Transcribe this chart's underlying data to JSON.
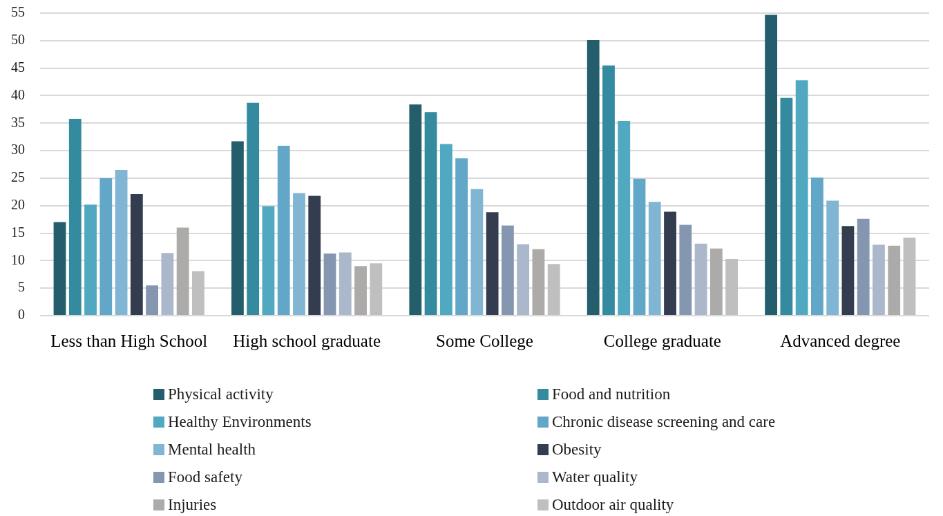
{
  "chart_data": {
    "type": "bar",
    "categories": [
      "Less than High School",
      "High school graduate",
      "Some College",
      "College graduate",
      "Advanced degree"
    ],
    "series": [
      {
        "name": "Physical activity",
        "color": "#245e6c",
        "values": [
          17.0,
          31.7,
          38.4,
          50.1,
          54.7
        ]
      },
      {
        "name": "Food and nutrition",
        "color": "#348a9e",
        "values": [
          35.8,
          38.7,
          37.0,
          45.5,
          39.6
        ]
      },
      {
        "name": "Healthy Environments",
        "color": "#50a8c1",
        "values": [
          20.2,
          19.9,
          31.2,
          35.4,
          42.8
        ]
      },
      {
        "name": "Chronic disease screening and care",
        "color": "#62a6c8",
        "values": [
          25.0,
          30.9,
          28.6,
          24.9,
          25.1
        ]
      },
      {
        "name": "Mental health",
        "color": "#80b6d3",
        "values": [
          26.5,
          22.3,
          23.0,
          20.7,
          20.9
        ]
      },
      {
        "name": "Obesity",
        "color": "#333d4f",
        "values": [
          22.1,
          21.8,
          18.8,
          18.9,
          16.3
        ]
      },
      {
        "name": "Food safety",
        "color": "#8597b0",
        "values": [
          5.5,
          11.3,
          16.4,
          16.5,
          17.6
        ]
      },
      {
        "name": "Water quality",
        "color": "#abb7ca",
        "values": [
          11.4,
          11.5,
          13.0,
          13.1,
          12.9
        ]
      },
      {
        "name": "Injuries",
        "color": "#adaaaa",
        "values": [
          16.0,
          9.0,
          12.1,
          12.2,
          12.7
        ]
      },
      {
        "name": "Outdoor air quality",
        "color": "#bfbfbf",
        "values": [
          8.1,
          9.5,
          9.4,
          10.3,
          14.2
        ]
      }
    ],
    "ylim": [
      0,
      55
    ],
    "yticks": [
      0,
      5,
      10,
      15,
      20,
      25,
      30,
      35,
      40,
      45,
      50,
      55
    ],
    "grid": "y",
    "legend": "bottom"
  }
}
